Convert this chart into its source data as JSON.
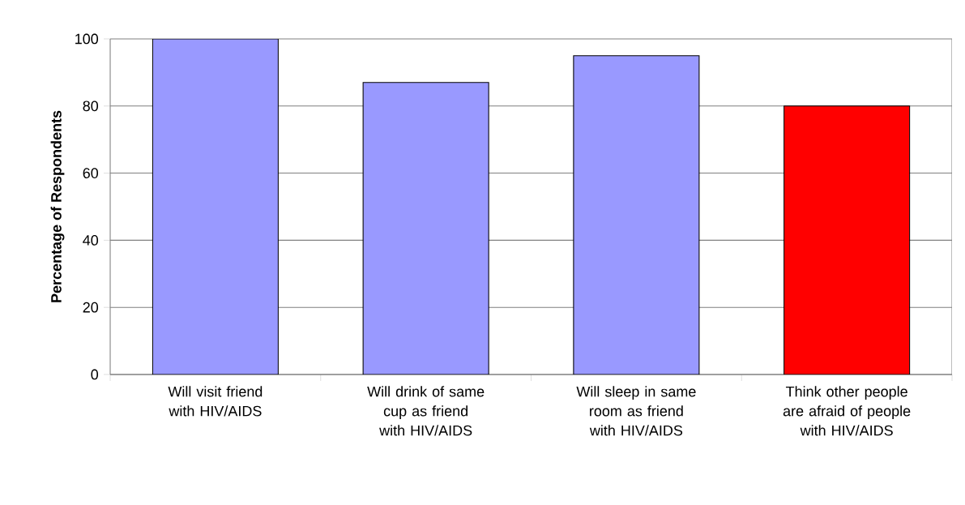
{
  "chart_data": {
    "type": "bar",
    "ylabel": "**Percentage of Respondents**",
    "categories": [
      "Will visit friend with HIV/AIDS",
      "Will drink of same cup as friend with HIV/AIDS",
      "Will sleep in same room as friend with HIV/AIDS",
      "Think other people are afraid of people with HIV/AIDS"
    ],
    "values": [
      100,
      87,
      95,
      80
    ],
    "colors": [
      "#9999ff",
      "#9999ff",
      "#9999ff",
      "#ff0000"
    ],
    "ylim": [
      0,
      100
    ],
    "yticks": [
      0,
      20,
      40,
      60,
      80,
      100
    ],
    "grid": "y"
  }
}
